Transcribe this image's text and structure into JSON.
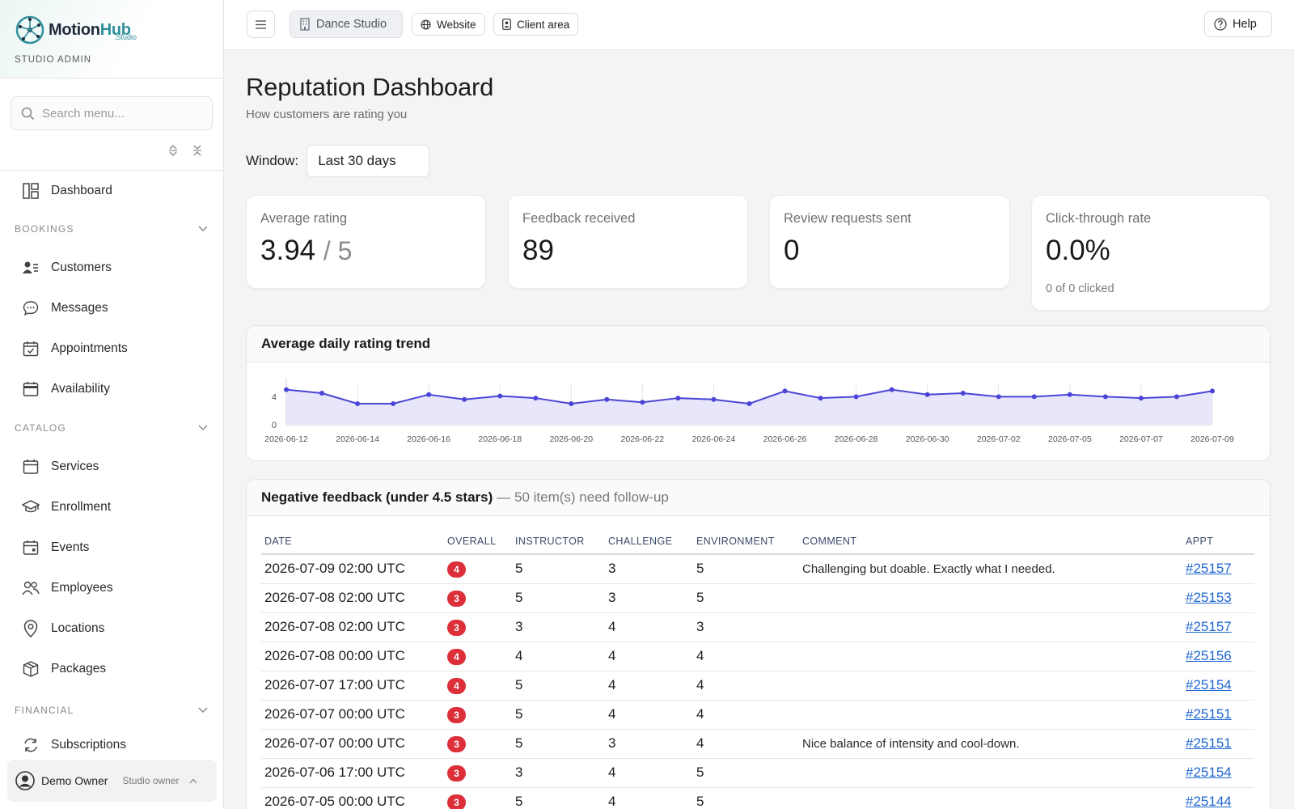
{
  "brand": {
    "name_part1": "Motion",
    "name_part2": "Hub",
    "sub": ".Studio",
    "role": "STUDIO ADMIN"
  },
  "search": {
    "placeholder": "Search menu..."
  },
  "sidebar": {
    "top_item": {
      "label": "Dashboard",
      "icon": "dashboard-icon"
    },
    "sections": [
      {
        "title": "BOOKINGS",
        "items": [
          {
            "label": "Customers",
            "icon": "customers-icon"
          },
          {
            "label": "Messages",
            "icon": "messages-icon"
          },
          {
            "label": "Appointments",
            "icon": "calendar-check-icon"
          },
          {
            "label": "Availability",
            "icon": "availability-icon"
          }
        ]
      },
      {
        "title": "CATALOG",
        "items": [
          {
            "label": "Services",
            "icon": "services-icon"
          },
          {
            "label": "Enrollment",
            "icon": "graduation-cap-icon"
          },
          {
            "label": "Events",
            "icon": "events-icon"
          },
          {
            "label": "Employees",
            "icon": "employees-icon"
          },
          {
            "label": "Locations",
            "icon": "location-pin-icon"
          },
          {
            "label": "Packages",
            "icon": "package-icon"
          }
        ]
      },
      {
        "title": "FINANCIAL",
        "items": [
          {
            "label": "Subscriptions",
            "icon": "refresh-icon"
          }
        ]
      }
    ]
  },
  "user": {
    "name": "Demo Owner",
    "role": "Studio owner"
  },
  "topbar": {
    "studio_label": "Dance Studio",
    "website_label": "Website",
    "client_label": "Client area",
    "help_label": "Help"
  },
  "page": {
    "title": "Reputation Dashboard",
    "subtitle": "How customers are rating you",
    "window_label": "Window:",
    "window_value": "Last 30 days"
  },
  "stats": {
    "avg_rating": {
      "label": "Average rating",
      "value": "3.94",
      "denominator": "/ 5"
    },
    "feedback": {
      "label": "Feedback received",
      "value": "89"
    },
    "requests": {
      "label": "Review requests sent",
      "value": "0"
    },
    "ctr": {
      "label": "Click-through rate",
      "value": "0.0%",
      "note": "0 of 0 clicked"
    }
  },
  "trend": {
    "title": "Average daily rating trend"
  },
  "chart_data": {
    "type": "area",
    "title": "Average daily rating trend",
    "x": [
      "2026-06-12",
      "2026-06-13",
      "2026-06-14",
      "2026-06-15",
      "2026-06-16",
      "2026-06-17",
      "2026-06-18",
      "2026-06-19",
      "2026-06-20",
      "2026-06-21",
      "2026-06-22",
      "2026-06-23",
      "2026-06-24",
      "2026-06-25",
      "2026-06-26",
      "2026-06-27",
      "2026-06-28",
      "2026-06-29",
      "2026-06-30",
      "2026-07-01",
      "2026-07-02",
      "2026-07-04",
      "2026-07-05",
      "2026-07-06",
      "2026-07-07",
      "2026-07-08",
      "2026-07-09"
    ],
    "x_tick_labels": [
      "2026-06-12",
      "2026-06-14",
      "2026-06-16",
      "2026-06-18",
      "2026-06-20",
      "2026-06-22",
      "2026-06-24",
      "2026-06-26",
      "2026-06-28",
      "2026-06-30",
      "2026-07-02",
      "2026-07-05",
      "2026-07-07",
      "2026-07-09"
    ],
    "series": [
      {
        "values": [
          5.0,
          4.5,
          3.0,
          3.0,
          4.3,
          3.6,
          4.1,
          3.8,
          3.0,
          3.6,
          3.2,
          3.8,
          3.6,
          3.0,
          4.8,
          3.8,
          4.0,
          5.0,
          4.3,
          4.5,
          4.0,
          4.0,
          4.3,
          4.0,
          3.8,
          4.0,
          4.8
        ],
        "color": "#4b45d6"
      }
    ],
    "y_ticks": [
      0,
      4
    ],
    "ylim": [
      0,
      6
    ],
    "fill_color": "#e8e6fb",
    "grid": "vertical"
  },
  "negative": {
    "title": "Negative feedback (under 4.5 stars)",
    "subtitle": "— 50 item(s) need follow-up",
    "columns": {
      "date": "DATE",
      "overall": "OVERALL",
      "instructor": "INSTRUCTOR",
      "challenge": "CHALLENGE",
      "environment": "ENVIRONMENT",
      "comment": "COMMENT",
      "appt": "APPT"
    },
    "rows": [
      {
        "date": "2026-07-09 02:00 UTC",
        "overall": "4",
        "instructor": "5",
        "challenge": "3",
        "environment": "5",
        "comment": "Challenging but doable. Exactly what I needed.",
        "appt": "#25157"
      },
      {
        "date": "2026-07-08 02:00 UTC",
        "overall": "3",
        "instructor": "5",
        "challenge": "3",
        "environment": "5",
        "comment": "",
        "appt": "#25153"
      },
      {
        "date": "2026-07-08 02:00 UTC",
        "overall": "3",
        "instructor": "3",
        "challenge": "4",
        "environment": "3",
        "comment": "",
        "appt": "#25157"
      },
      {
        "date": "2026-07-08 00:00 UTC",
        "overall": "4",
        "instructor": "4",
        "challenge": "4",
        "environment": "4",
        "comment": "",
        "appt": "#25156"
      },
      {
        "date": "2026-07-07 17:00 UTC",
        "overall": "4",
        "instructor": "5",
        "challenge": "4",
        "environment": "4",
        "comment": "",
        "appt": "#25154"
      },
      {
        "date": "2026-07-07 00:00 UTC",
        "overall": "3",
        "instructor": "5",
        "challenge": "4",
        "environment": "4",
        "comment": "",
        "appt": "#25151"
      },
      {
        "date": "2026-07-07 00:00 UTC",
        "overall": "3",
        "instructor": "5",
        "challenge": "3",
        "environment": "4",
        "comment": "Nice balance of intensity and cool-down.",
        "appt": "#25151"
      },
      {
        "date": "2026-07-06 17:00 UTC",
        "overall": "3",
        "instructor": "3",
        "challenge": "4",
        "environment": "5",
        "comment": "",
        "appt": "#25154"
      },
      {
        "date": "2026-07-05 00:00 UTC",
        "overall": "3",
        "instructor": "5",
        "challenge": "4",
        "environment": "5",
        "comment": "",
        "appt": "#25144"
      }
    ]
  }
}
